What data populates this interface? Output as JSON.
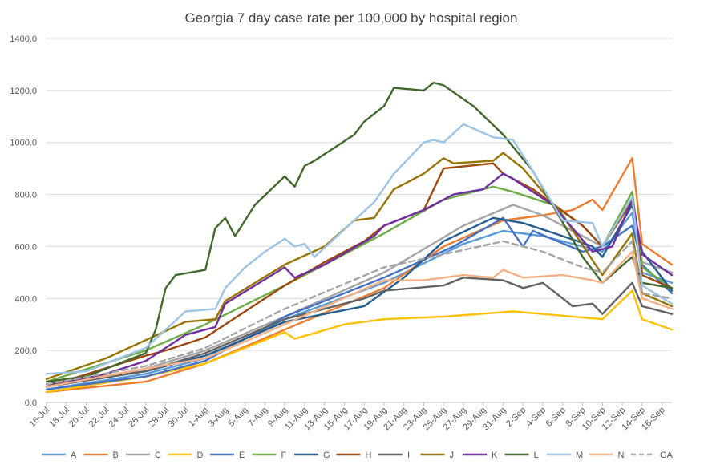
{
  "chart_data": {
    "type": "line",
    "title": "Georgia 7 day case rate per 100,000 by hospital region",
    "xlabel": "",
    "ylabel": "",
    "ylim": [
      0,
      1400
    ],
    "y_ticks": [
      "0.0",
      "200.0",
      "400.0",
      "600.0",
      "800.0",
      "1000.0",
      "1200.0",
      "1400.0"
    ],
    "x_tick_labels": [
      "16-Jul",
      "18-Jul",
      "20-Jul",
      "22-Jul",
      "24-Jul",
      "26-Jul",
      "28-Jul",
      "30-Jul",
      "1-Aug",
      "3-Aug",
      "5-Aug",
      "7-Aug",
      "9-Aug",
      "11-Aug",
      "13-Aug",
      "15-Aug",
      "17-Aug",
      "19-Aug",
      "21-Aug",
      "23-Aug",
      "25-Aug",
      "27-Aug",
      "29-Aug",
      "31-Aug",
      "2-Sep",
      "4-Sep",
      "6-Sep",
      "8-Sep",
      "10-Sep",
      "12-Sep",
      "14-Sep",
      "16-Sep"
    ],
    "x_start": "16-Jul",
    "x_end": "17-Sep",
    "grid": "horizontal",
    "legend": "bottom",
    "series": [
      {
        "name": "A",
        "color": "#5B9BD5",
        "dash": false,
        "points": [
          [
            "16-Jul",
            50
          ],
          [
            "26-Jul",
            110
          ],
          [
            "1-Aug",
            170
          ],
          [
            "9-Aug",
            320
          ],
          [
            "19-Aug",
            460
          ],
          [
            "27-Aug",
            610
          ],
          [
            "31-Aug",
            660
          ],
          [
            "4-Sep",
            640
          ],
          [
            "10-Sep",
            580
          ],
          [
            "13-Sep",
            730
          ],
          [
            "14-Sep",
            500
          ],
          [
            "17-Sep",
            460
          ]
        ]
      },
      {
        "name": "B",
        "color": "#ED7D31",
        "dash": false,
        "points": [
          [
            "16-Jul",
            40
          ],
          [
            "26-Jul",
            80
          ],
          [
            "1-Aug",
            150
          ],
          [
            "9-Aug",
            280
          ],
          [
            "19-Aug",
            440
          ],
          [
            "25-Aug",
            600
          ],
          [
            "31-Aug",
            700
          ],
          [
            "4-Sep",
            720
          ],
          [
            "7-Sep",
            740
          ],
          [
            "9-Sep",
            780
          ],
          [
            "10-Sep",
            740
          ],
          [
            "13-Sep",
            940
          ],
          [
            "14-Sep",
            610
          ],
          [
            "17-Sep",
            530
          ]
        ]
      },
      {
        "name": "C",
        "color": "#A5A5A5",
        "dash": false,
        "points": [
          [
            "16-Jul",
            60
          ],
          [
            "26-Jul",
            130
          ],
          [
            "1-Aug",
            200
          ],
          [
            "9-Aug",
            330
          ],
          [
            "19-Aug",
            500
          ],
          [
            "27-Aug",
            680
          ],
          [
            "1-Sep",
            760
          ],
          [
            "4-Sep",
            720
          ],
          [
            "10-Sep",
            600
          ],
          [
            "13-Sep",
            770
          ],
          [
            "14-Sep",
            540
          ],
          [
            "17-Sep",
            500
          ]
        ]
      },
      {
        "name": "D",
        "color": "#FFC000",
        "dash": false,
        "points": [
          [
            "16-Jul",
            40
          ],
          [
            "26-Jul",
            100
          ],
          [
            "1-Aug",
            150
          ],
          [
            "9-Aug",
            270
          ],
          [
            "10-Aug",
            245
          ],
          [
            "15-Aug",
            300
          ],
          [
            "19-Aug",
            320
          ],
          [
            "25-Aug",
            330
          ],
          [
            "1-Sep",
            350
          ],
          [
            "4-Sep",
            340
          ],
          [
            "10-Sep",
            320
          ],
          [
            "13-Sep",
            430
          ],
          [
            "14-Sep",
            320
          ],
          [
            "17-Sep",
            280
          ]
        ]
      },
      {
        "name": "E",
        "color": "#4472C4",
        "dash": false,
        "points": [
          [
            "16-Jul",
            50
          ],
          [
            "26-Jul",
            100
          ],
          [
            "1-Aug",
            160
          ],
          [
            "9-Aug",
            330
          ],
          [
            "19-Aug",
            480
          ],
          [
            "26-Aug",
            600
          ],
          [
            "31-Aug",
            710
          ],
          [
            "2-Sep",
            600
          ],
          [
            "3-Sep",
            660
          ],
          [
            "8-Sep",
            580
          ],
          [
            "10-Sep",
            600
          ],
          [
            "13-Sep",
            680
          ],
          [
            "14-Sep",
            530
          ],
          [
            "17-Sep",
            420
          ]
        ]
      },
      {
        "name": "F",
        "color": "#70AD47",
        "dash": false,
        "points": [
          [
            "16-Jul",
            80
          ],
          [
            "26-Jul",
            200
          ],
          [
            "1-Aug",
            300
          ],
          [
            "9-Aug",
            450
          ],
          [
            "19-Aug",
            650
          ],
          [
            "25-Aug",
            780
          ],
          [
            "30-Aug",
            830
          ],
          [
            "1-Sep",
            810
          ],
          [
            "5-Sep",
            760
          ],
          [
            "8-Sep",
            680
          ],
          [
            "10-Sep",
            600
          ],
          [
            "13-Sep",
            810
          ],
          [
            "14-Sep",
            520
          ],
          [
            "17-Sep",
            440
          ]
        ]
      },
      {
        "name": "G",
        "color": "#255E91",
        "dash": false,
        "points": [
          [
            "16-Jul",
            70
          ],
          [
            "26-Jul",
            120
          ],
          [
            "1-Aug",
            180
          ],
          [
            "9-Aug",
            310
          ],
          [
            "17-Aug",
            370
          ],
          [
            "21-Aug",
            480
          ],
          [
            "25-Aug",
            620
          ],
          [
            "30-Aug",
            710
          ],
          [
            "2-Sep",
            690
          ],
          [
            "6-Sep",
            640
          ],
          [
            "9-Sep",
            600
          ],
          [
            "10-Sep",
            560
          ],
          [
            "13-Sep",
            760
          ],
          [
            "14-Sep",
            580
          ],
          [
            "17-Sep",
            430
          ]
        ]
      },
      {
        "name": "H",
        "color": "#9E480E",
        "dash": false,
        "points": [
          [
            "16-Jul",
            60
          ],
          [
            "26-Jul",
            180
          ],
          [
            "28-Jul",
            200
          ],
          [
            "1-Aug",
            250
          ],
          [
            "3-Aug",
            300
          ],
          [
            "9-Aug",
            450
          ],
          [
            "13-Aug",
            540
          ],
          [
            "17-Aug",
            620
          ],
          [
            "19-Aug",
            680
          ],
          [
            "23-Aug",
            740
          ],
          [
            "25-Aug",
            900
          ],
          [
            "30-Aug",
            920
          ],
          [
            "31-Aug",
            880
          ],
          [
            "3-Sep",
            820
          ],
          [
            "8-Sep",
            680
          ],
          [
            "10-Sep",
            600
          ],
          [
            "13-Sep",
            780
          ],
          [
            "14-Sep",
            490
          ],
          [
            "17-Sep",
            440
          ]
        ]
      },
      {
        "name": "I",
        "color": "#636363",
        "dash": false,
        "points": [
          [
            "16-Jul",
            60
          ],
          [
            "26-Jul",
            120
          ],
          [
            "1-Aug",
            190
          ],
          [
            "9-Aug",
            320
          ],
          [
            "17-Aug",
            400
          ],
          [
            "19-Aug",
            430
          ],
          [
            "25-Aug",
            450
          ],
          [
            "27-Aug",
            480
          ],
          [
            "31-Aug",
            470
          ],
          [
            "2-Sep",
            440
          ],
          [
            "4-Sep",
            460
          ],
          [
            "7-Sep",
            370
          ],
          [
            "9-Sep",
            380
          ],
          [
            "10-Sep",
            340
          ],
          [
            "13-Sep",
            460
          ],
          [
            "14-Sep",
            370
          ],
          [
            "17-Sep",
            340
          ]
        ]
      },
      {
        "name": "J",
        "color": "#997300",
        "dash": false,
        "points": [
          [
            "16-Jul",
            90
          ],
          [
            "22-Jul",
            170
          ],
          [
            "26-Jul",
            240
          ],
          [
            "30-Jul",
            310
          ],
          [
            "2-Aug",
            320
          ],
          [
            "3-Aug",
            390
          ],
          [
            "9-Aug",
            530
          ],
          [
            "13-Aug",
            600
          ],
          [
            "16-Aug",
            700
          ],
          [
            "18-Aug",
            710
          ],
          [
            "20-Aug",
            820
          ],
          [
            "23-Aug",
            880
          ],
          [
            "25-Aug",
            940
          ],
          [
            "26-Aug",
            920
          ],
          [
            "30-Aug",
            930
          ],
          [
            "31-Aug",
            960
          ],
          [
            "2-Sep",
            900
          ],
          [
            "6-Sep",
            720
          ],
          [
            "10-Sep",
            490
          ],
          [
            "13-Sep",
            650
          ],
          [
            "14-Sep",
            420
          ],
          [
            "17-Sep",
            370
          ]
        ]
      },
      {
        "name": "K",
        "color": "#7030A0",
        "dash": false,
        "points": [
          [
            "16-Jul",
            60
          ],
          [
            "22-Jul",
            110
          ],
          [
            "26-Jul",
            160
          ],
          [
            "30-Jul",
            260
          ],
          [
            "2-Aug",
            290
          ],
          [
            "3-Aug",
            380
          ],
          [
            "6-Aug",
            450
          ],
          [
            "9-Aug",
            520
          ],
          [
            "10-Aug",
            480
          ],
          [
            "13-Aug",
            530
          ],
          [
            "18-Aug",
            640
          ],
          [
            "19-Aug",
            680
          ],
          [
            "23-Aug",
            740
          ],
          [
            "24-Aug",
            760
          ],
          [
            "26-Aug",
            800
          ],
          [
            "29-Aug",
            820
          ],
          [
            "31-Aug",
            880
          ],
          [
            "1-Sep",
            860
          ],
          [
            "5-Sep",
            760
          ],
          [
            "9-Sep",
            580
          ],
          [
            "11-Sep",
            600
          ],
          [
            "13-Sep",
            780
          ],
          [
            "14-Sep",
            570
          ],
          [
            "17-Sep",
            490
          ]
        ]
      },
      {
        "name": "L",
        "color": "#43682B",
        "dash": false,
        "points": [
          [
            "16-Jul",
            80
          ],
          [
            "20-Jul",
            100
          ],
          [
            "24-Jul",
            160
          ],
          [
            "26-Jul",
            190
          ],
          [
            "27-Jul",
            280
          ],
          [
            "28-Jul",
            440
          ],
          [
            "29-Jul",
            490
          ],
          [
            "1-Aug",
            510
          ],
          [
            "2-Aug",
            670
          ],
          [
            "3-Aug",
            710
          ],
          [
            "4-Aug",
            640
          ],
          [
            "6-Aug",
            760
          ],
          [
            "9-Aug",
            870
          ],
          [
            "10-Aug",
            830
          ],
          [
            "11-Aug",
            910
          ],
          [
            "12-Aug",
            930
          ],
          [
            "16-Aug",
            1030
          ],
          [
            "17-Aug",
            1080
          ],
          [
            "19-Aug",
            1140
          ],
          [
            "20-Aug",
            1210
          ],
          [
            "23-Aug",
            1200
          ],
          [
            "24-Aug",
            1230
          ],
          [
            "25-Aug",
            1220
          ],
          [
            "28-Aug",
            1140
          ],
          [
            "31-Aug",
            1030
          ],
          [
            "3-Sep",
            890
          ],
          [
            "8-Sep",
            560
          ],
          [
            "10-Sep",
            460
          ],
          [
            "13-Sep",
            560
          ],
          [
            "14-Sep",
            460
          ],
          [
            "17-Sep",
            440
          ]
        ]
      },
      {
        "name": "M",
        "color": "#9DC3E6",
        "dash": false,
        "points": [
          [
            "16-Jul",
            110
          ],
          [
            "20-Jul",
            120
          ],
          [
            "24-Jul",
            180
          ],
          [
            "26-Jul",
            210
          ],
          [
            "28-Jul",
            280
          ],
          [
            "30-Jul",
            350
          ],
          [
            "2-Aug",
            360
          ],
          [
            "3-Aug",
            440
          ],
          [
            "5-Aug",
            520
          ],
          [
            "7-Aug",
            580
          ],
          [
            "9-Aug",
            630
          ],
          [
            "10-Aug",
            600
          ],
          [
            "11-Aug",
            610
          ],
          [
            "12-Aug",
            560
          ],
          [
            "16-Aug",
            700
          ],
          [
            "18-Aug",
            770
          ],
          [
            "20-Aug",
            880
          ],
          [
            "23-Aug",
            1000
          ],
          [
            "24-Aug",
            1010
          ],
          [
            "25-Aug",
            1000
          ],
          [
            "27-Aug",
            1070
          ],
          [
            "30-Aug",
            1020
          ],
          [
            "1-Sep",
            1010
          ],
          [
            "3-Sep",
            890
          ],
          [
            "6-Sep",
            700
          ],
          [
            "9-Sep",
            690
          ],
          [
            "10-Sep",
            600
          ],
          [
            "13-Sep",
            790
          ],
          [
            "14-Sep",
            450
          ],
          [
            "17-Sep",
            380
          ]
        ]
      },
      {
        "name": "N",
        "color": "#F4B183",
        "dash": false,
        "points": [
          [
            "16-Jul",
            60
          ],
          [
            "26-Jul",
            130
          ],
          [
            "1-Aug",
            170
          ],
          [
            "9-Aug",
            300
          ],
          [
            "19-Aug",
            470
          ],
          [
            "23-Aug",
            470
          ],
          [
            "27-Aug",
            490
          ],
          [
            "30-Aug",
            480
          ],
          [
            "31-Aug",
            510
          ],
          [
            "2-Sep",
            480
          ],
          [
            "6-Sep",
            490
          ],
          [
            "9-Sep",
            470
          ],
          [
            "10-Sep",
            460
          ],
          [
            "13-Sep",
            580
          ],
          [
            "14-Sep",
            400
          ],
          [
            "17-Sep",
            360
          ]
        ]
      },
      {
        "name": "GA",
        "color": "#A5A5A5",
        "dash": true,
        "points": [
          [
            "16-Jul",
            70
          ],
          [
            "26-Jul",
            140
          ],
          [
            "1-Aug",
            210
          ],
          [
            "9-Aug",
            360
          ],
          [
            "19-Aug",
            520
          ],
          [
            "25-Aug",
            570
          ],
          [
            "31-Aug",
            620
          ],
          [
            "4-Sep",
            580
          ],
          [
            "8-Sep",
            520
          ],
          [
            "10-Sep",
            500
          ],
          [
            "13-Sep",
            620
          ],
          [
            "14-Sep",
            420
          ],
          [
            "17-Sep",
            400
          ]
        ]
      }
    ]
  }
}
